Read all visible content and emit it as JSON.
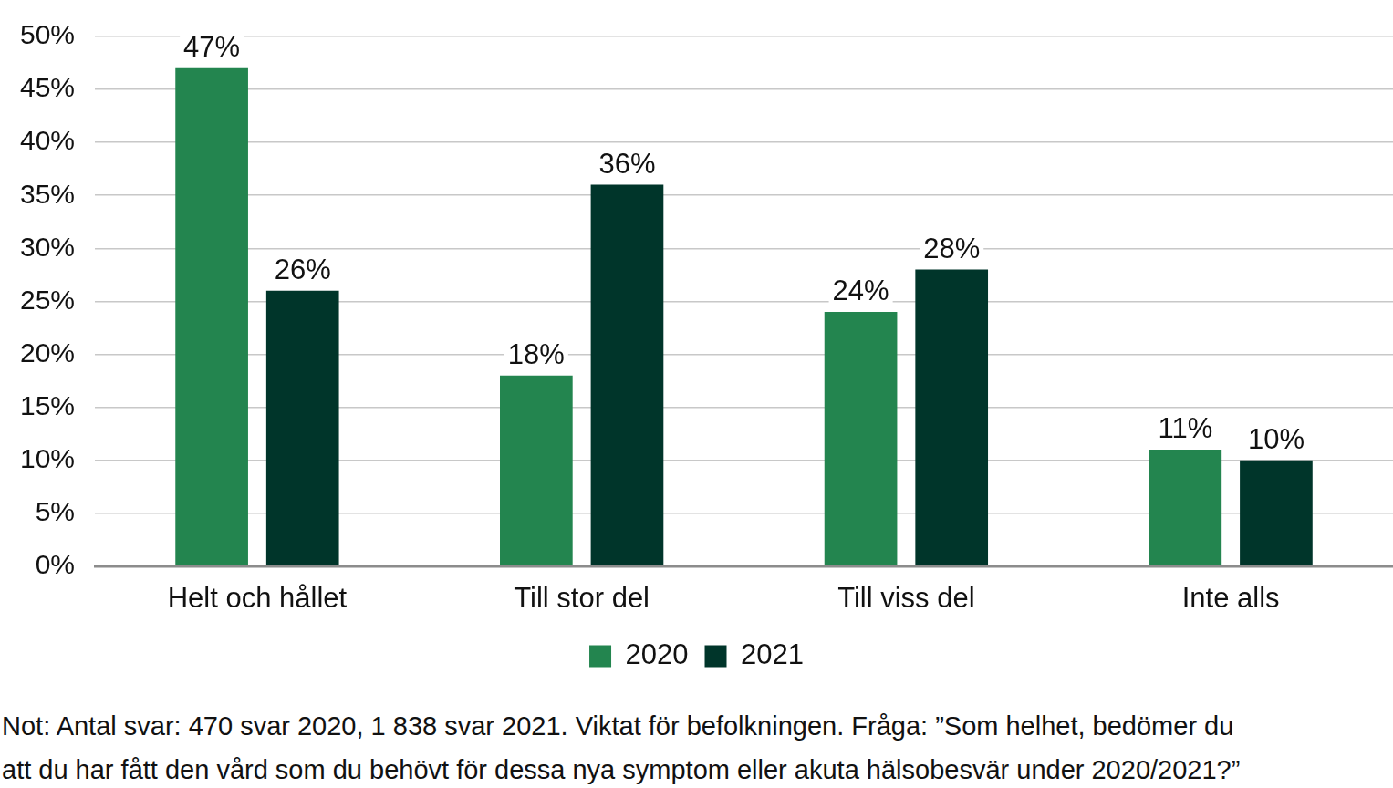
{
  "chart_data": {
    "type": "bar",
    "categories": [
      "Helt och hållet",
      "Till stor del",
      "Till viss del",
      "Inte alls"
    ],
    "series": [
      {
        "name": "2020",
        "color": "#23854f",
        "values": [
          47,
          18,
          24,
          11
        ],
        "value_labels": [
          "47%",
          "18%",
          "24%",
          "11%"
        ]
      },
      {
        "name": "2021",
        "color": "#00352a",
        "values": [
          26,
          36,
          28,
          10
        ],
        "value_labels": [
          "26%",
          "36%",
          "28%",
          "10%"
        ]
      }
    ],
    "ylim": [
      0,
      50
    ],
    "yticks": [
      {
        "value": 0,
        "label": "0%"
      },
      {
        "value": 5,
        "label": "5%"
      },
      {
        "value": 10,
        "label": "10%"
      },
      {
        "value": 15,
        "label": "15%"
      },
      {
        "value": 20,
        "label": "20%"
      },
      {
        "value": 25,
        "label": "25%"
      },
      {
        "value": 30,
        "label": "30%"
      },
      {
        "value": 35,
        "label": "35%"
      },
      {
        "value": 40,
        "label": "40%"
      },
      {
        "value": 45,
        "label": "45%"
      },
      {
        "value": 50,
        "label": "50%"
      }
    ],
    "grid": true,
    "legend": "bottom",
    "data_labels": true,
    "note": [
      "Not: Antal svar: 470 svar 2020, 1 838 svar 2021. Viktat för befolkningen. Fråga: ”Som helhet, bedömer du",
      "att du har fått den vård som du behövt för dessa nya symptom eller akuta hälsobesvär under 2020/2021?”"
    ]
  }
}
